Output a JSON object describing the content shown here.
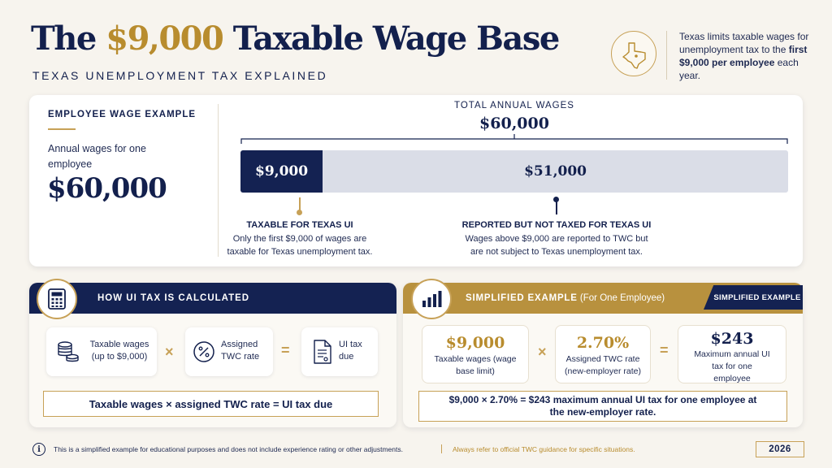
{
  "header": {
    "title_pre": "The ",
    "title_amount": "$9,000",
    "title_post": " Taxable Wage Base",
    "subtitle": "TEXAS UNEMPLOYMENT TAX EXPLAINED",
    "note_pre": "Texas limits taxable wages for unemployment tax to the ",
    "note_bold": "first $9,000 per employee",
    "note_post": " each year.",
    "badge_icon": "texas-map-icon"
  },
  "wage_example": {
    "heading": "EMPLOYEE WAGE EXAMPLE",
    "label": "Annual wages for one employee",
    "amount": "$60,000"
  },
  "total": {
    "heading": "TOTAL ANNUAL WAGES",
    "amount": "$60,000",
    "bar": {
      "taxable_value": "$9,000",
      "untaxed_value": "$51,000",
      "taxable_fraction": 0.15
    },
    "taxable_callout": {
      "title": "TAXABLE FOR TEXAS UI",
      "text": "Only the first $9,000 of wages are taxable for Texas unemployment tax."
    },
    "untaxed_callout": {
      "title": "REPORTED BUT NOT TAXED FOR TEXAS UI",
      "text": "Wages above $9,000 are reported to TWC but are not subject to Texas unemployment tax."
    }
  },
  "how_calculated": {
    "heading": "HOW UI TAX IS CALCULATED",
    "icon": "calculator-icon",
    "steps": [
      {
        "icon": "coins-icon",
        "label": "Taxable wages (up to $9,000)"
      },
      {
        "icon": "percent-icon",
        "label": "Assigned TWC rate"
      },
      {
        "icon": "document-icon",
        "label": "UI tax due"
      }
    ],
    "op_multiply": "×",
    "op_equals": "=",
    "formula": "Taxable wages  ×  assigned TWC rate = UI tax due"
  },
  "example": {
    "heading": "SIMPLIFIED EXAMPLE",
    "heading_sub": " (For One Employee)",
    "tab": "SIMPLIFIED EXAMPLE",
    "icon": "bar-chart-icon",
    "items": [
      {
        "value": "$9,000",
        "label": "Taxable wages (wage base limit)"
      },
      {
        "value": "2.70%",
        "label": "Assigned TWC rate (new-employer rate)"
      },
      {
        "value": "$243",
        "label": "Maximum annual UI tax for one employee"
      }
    ],
    "op_multiply": "×",
    "op_equals": "=",
    "summary": "$9,000  ×  2.70%  =  $243 maximum annual UI tax for one employee at the new-employer rate."
  },
  "footer": {
    "disclaimer": "This is a simplified example for educational purposes and does not include experience rating or other adjustments.",
    "reference": "Always refer to official TWC guidance for specific situations.",
    "year": "2026",
    "info_icon": "info-icon"
  },
  "colors": {
    "navy": "#142252",
    "gold": "#b8913e",
    "bar_grey": "#dadde7",
    "background": "#f7f4ee"
  }
}
